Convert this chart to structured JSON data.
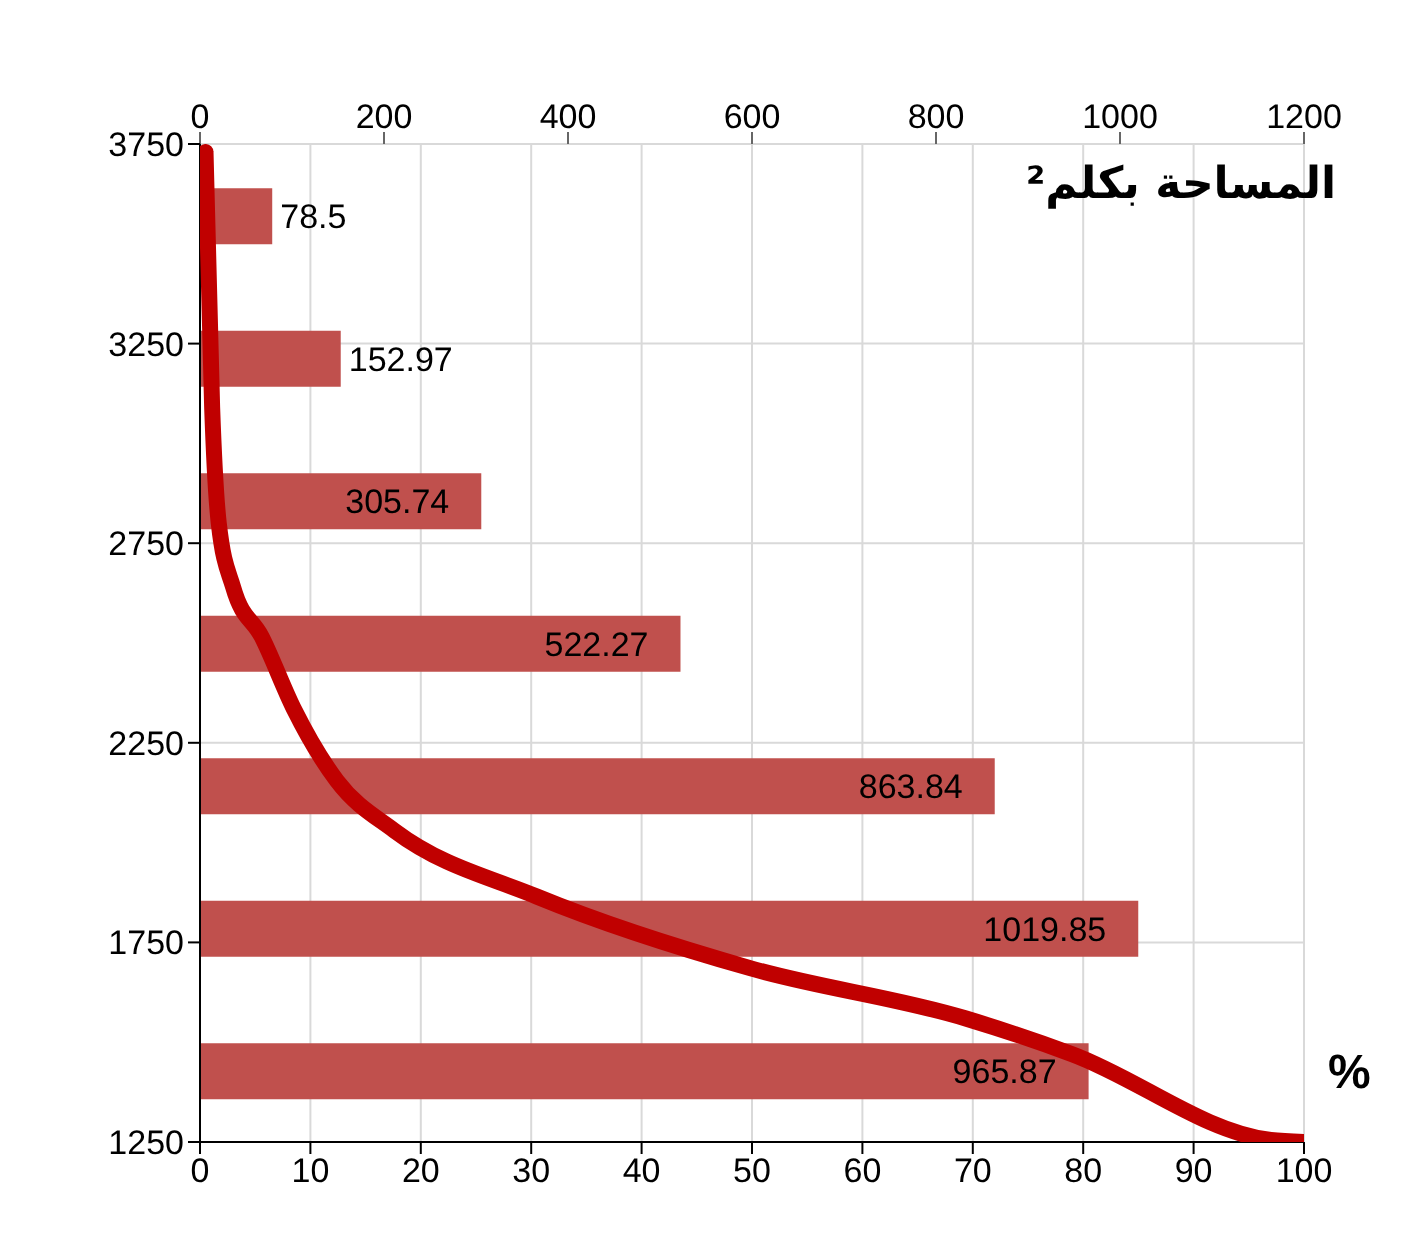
{
  "chart_data": {
    "type": "bar",
    "orientation": "horizontal",
    "x2label": "المساحة بكلم²",
    "xlabel": "%",
    "series": [
      {
        "type": "bar",
        "axis": "x2",
        "color": "#c0504d",
        "x": [
          3571,
          3214,
          2857,
          2500,
          2143,
          1786,
          1429
        ],
        "values": [
          78.5,
          152.97,
          305.74,
          522.27,
          863.84,
          1019.85,
          965.87
        ],
        "value_labels": [
          "78.5",
          "152.97",
          "305.74",
          "522.27",
          "863.84",
          "1019.85",
          "965.87"
        ]
      },
      {
        "type": "line",
        "color": "#c00000",
        "x": [
          3730,
          3090,
          2800,
          2640,
          2515,
          2335,
          2155,
          2030,
          1865,
          1685,
          1560,
          1470,
          1255,
          1250
        ],
        "values": [
          0.5,
          1.1,
          1.7,
          3.0,
          5.6,
          8.5,
          12.4,
          17.6,
          30.5,
          49.9,
          69.3,
          79,
          97,
          100
        ]
      }
    ],
    "x2lim": [
      0,
      1200
    ],
    "x2ticks": [
      0,
      200,
      400,
      600,
      800,
      1000,
      1200
    ],
    "xlim": [
      0,
      100
    ],
    "xticks": [
      0,
      10,
      20,
      30,
      40,
      50,
      60,
      70,
      80,
      90,
      100
    ],
    "ylim": [
      1250,
      3750
    ],
    "yticks": [
      1250,
      1750,
      2250,
      2750,
      3250,
      3750
    ],
    "grid": true
  }
}
